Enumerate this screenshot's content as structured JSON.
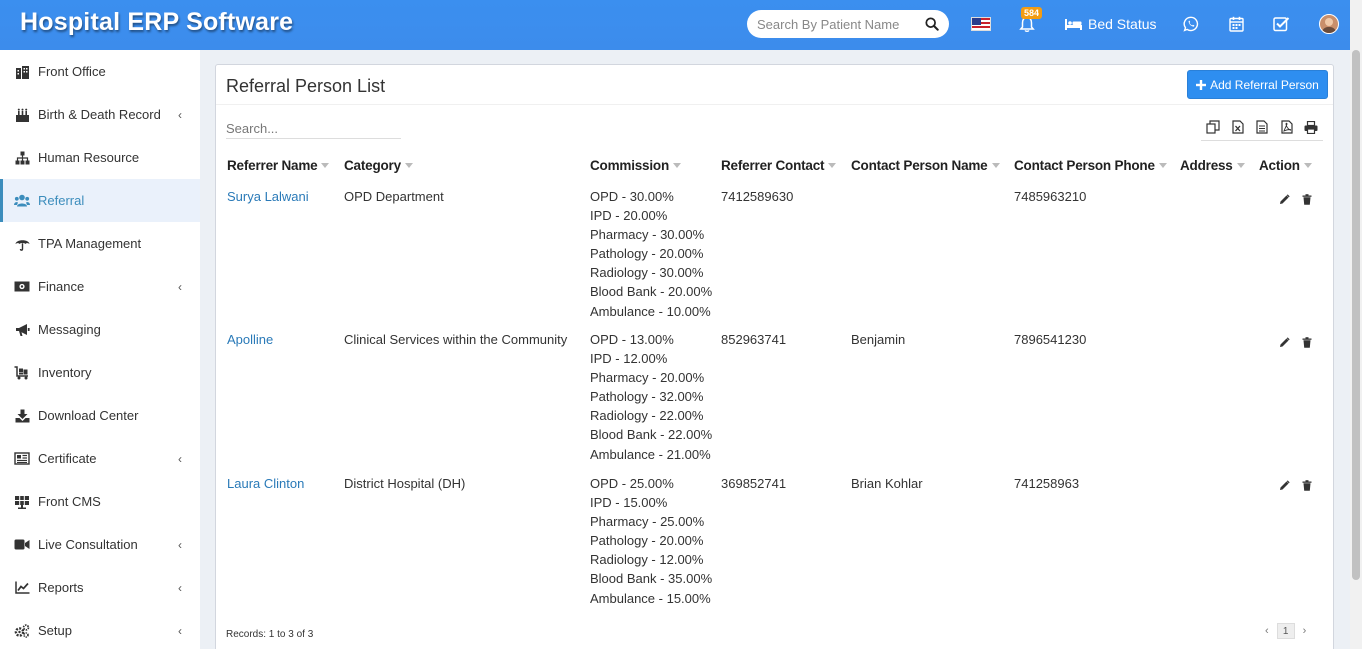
{
  "header": {
    "brand": "Hospital ERP Software",
    "search_placeholder": "Search By Patient Name",
    "notification_count": "584",
    "bed_status": "Bed Status"
  },
  "sidebar": {
    "items": [
      {
        "label": "Front Office",
        "icon": "building-icon",
        "submenu": false,
        "active": false
      },
      {
        "label": "Birth & Death Record",
        "icon": "birthday-cake-icon",
        "submenu": true,
        "active": false
      },
      {
        "label": "Human Resource",
        "icon": "sitemap-icon",
        "submenu": false,
        "active": false
      },
      {
        "label": "Referral",
        "icon": "users-icon",
        "submenu": false,
        "active": true
      },
      {
        "label": "TPA Management",
        "icon": "umbrella-icon",
        "submenu": false,
        "active": false
      },
      {
        "label": "Finance",
        "icon": "money-icon",
        "submenu": true,
        "active": false
      },
      {
        "label": "Messaging",
        "icon": "bullhorn-icon",
        "submenu": false,
        "active": false
      },
      {
        "label": "Inventory",
        "icon": "cart-icon",
        "submenu": false,
        "active": false
      },
      {
        "label": "Download Center",
        "icon": "download-icon",
        "submenu": false,
        "active": false
      },
      {
        "label": "Certificate",
        "icon": "newspaper-icon",
        "submenu": true,
        "active": false
      },
      {
        "label": "Front CMS",
        "icon": "solar-panel-icon",
        "submenu": false,
        "active": false
      },
      {
        "label": "Live Consultation",
        "icon": "video-icon",
        "submenu": true,
        "active": false
      },
      {
        "label": "Reports",
        "icon": "line-chart-icon",
        "submenu": true,
        "active": false
      },
      {
        "label": "Setup",
        "icon": "gears-icon",
        "submenu": true,
        "active": false
      }
    ]
  },
  "main": {
    "title": "Referral Person List",
    "add_button": "Add Referral Person",
    "search_placeholder": "Search...",
    "columns": [
      "Referrer Name",
      "Category",
      "Commission",
      "Referrer Contact",
      "Contact Person Name",
      "Contact Person Phone",
      "Address",
      "Action"
    ],
    "rows": [
      {
        "name": "Surya Lalwani",
        "category": "OPD Department",
        "commission": [
          "OPD - 30.00%",
          "IPD - 20.00%",
          "Pharmacy - 30.00%",
          "Pathology - 20.00%",
          "Radiology - 30.00%",
          "Blood Bank - 20.00%",
          "Ambulance - 10.00%"
        ],
        "contact": "7412589630",
        "person": "",
        "phone": "7485963210",
        "address": ""
      },
      {
        "name": "Apolline",
        "category": "Clinical Services within the Community",
        "commission": [
          "OPD - 13.00%",
          "IPD - 12.00%",
          "Pharmacy - 20.00%",
          "Pathology - 32.00%",
          "Radiology - 22.00%",
          "Blood Bank - 22.00%",
          "Ambulance - 21.00%"
        ],
        "contact": "852963741",
        "person": "Benjamin",
        "phone": "7896541230",
        "address": ""
      },
      {
        "name": "Laura Clinton",
        "category": "District Hospital (DH)",
        "commission": [
          "OPD - 25.00%",
          "IPD - 15.00%",
          "Pharmacy - 25.00%",
          "Pathology - 20.00%",
          "Radiology - 12.00%",
          "Blood Bank - 35.00%",
          "Ambulance - 15.00%"
        ],
        "contact": "369852741",
        "person": "Brian Kohlar",
        "phone": "741258963",
        "address": ""
      }
    ],
    "records_text": "Records: 1 to 3 of 3",
    "current_page": "1",
    "prev": "‹",
    "next": "›"
  },
  "colors": {
    "header": "#3c8dee",
    "accent": "#3c8dbc",
    "link": "#2a7ab8",
    "button": "#2e8ef0"
  }
}
